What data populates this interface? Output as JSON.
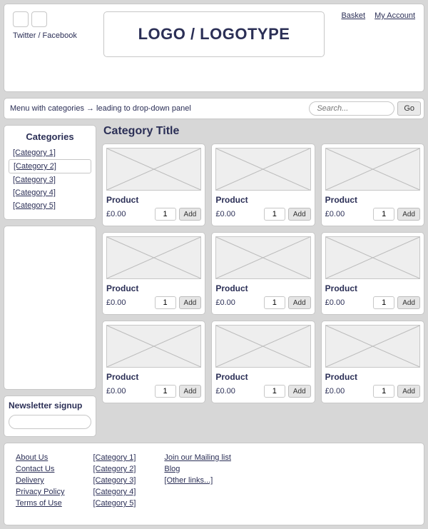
{
  "header": {
    "social_label": "Twitter / Facebook",
    "logo_text": "LOGO / LOGOTYPE",
    "top_links": {
      "basket": "Basket",
      "account": "My Account"
    }
  },
  "menubar": {
    "text": "Menu with categories → leading to drop-down panel",
    "search_placeholder": "Search...",
    "go_label": "Go"
  },
  "sidebar": {
    "title": "Categories",
    "items": [
      {
        "label": "[Category 1]",
        "selected": false
      },
      {
        "label": "[Category 2]",
        "selected": true
      },
      {
        "label": "[Category 3]",
        "selected": false
      },
      {
        "label": "[Category 4]",
        "selected": false
      },
      {
        "label": "[Category 5]",
        "selected": false
      }
    ],
    "newsletter_title": "Newsletter signup"
  },
  "main": {
    "title": "Category Title",
    "product_name": "Product",
    "price": "£0.00",
    "qty": "1",
    "add_label": "Add"
  },
  "footer": {
    "col1": [
      "About Us",
      "Contact Us",
      "Delivery",
      "Privacy Policy",
      "Terms of Use"
    ],
    "col2": [
      "[Category 1]",
      "[Category 2]",
      "[Category 3]",
      "[Category 4]",
      "[Category 5]"
    ],
    "col3": [
      "Join our Mailing list",
      "Blog",
      "[Other links...]"
    ]
  },
  "colors": {
    "page_bg": "#d7d7d7",
    "panel_bg": "#ffffff",
    "panel_border": "#c7c7c7",
    "text_primary": "#2b2f56",
    "thumb_bg": "#eeeeee",
    "thumb_line": "#bcbcbc",
    "button_bg": "#e5e5e5"
  }
}
